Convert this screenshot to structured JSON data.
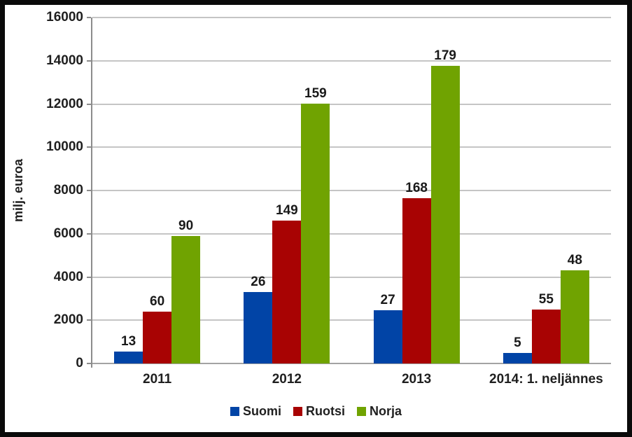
{
  "chart_data": {
    "type": "bar",
    "title": "",
    "xlabel": "",
    "ylabel": "milj. euroa",
    "ylim": [
      0,
      16000
    ],
    "ytick_step": 2000,
    "ytick_labels": [
      "0",
      "2000",
      "4000",
      "6000",
      "8000",
      "10000",
      "12000",
      "14000",
      "16000"
    ],
    "grid": true,
    "legend_position": "bottom",
    "categories": [
      "2011",
      "2012",
      "2013",
      "2014: 1. neljännes"
    ],
    "series": [
      {
        "name": "Suomi",
        "color": "#0144a6",
        "values": [
          550,
          3300,
          2450,
          480
        ],
        "labels": [
          "13",
          "26",
          "27",
          "5"
        ]
      },
      {
        "name": "Ruotsi",
        "color": "#a80303",
        "values": [
          2400,
          6600,
          7650,
          2500
        ],
        "labels": [
          "60",
          "149",
          "168",
          "55"
        ]
      },
      {
        "name": "Norja",
        "color": "#70a301",
        "values": [
          5900,
          12000,
          13750,
          4300
        ],
        "labels": [
          "90",
          "159",
          "179",
          "48"
        ]
      }
    ],
    "colors": {
      "background": "#ffffff",
      "border": "#0a0a0a",
      "gridline": "#c5c5c5",
      "axis": "#8c8c8c",
      "text": "#1f1f1f"
    }
  }
}
